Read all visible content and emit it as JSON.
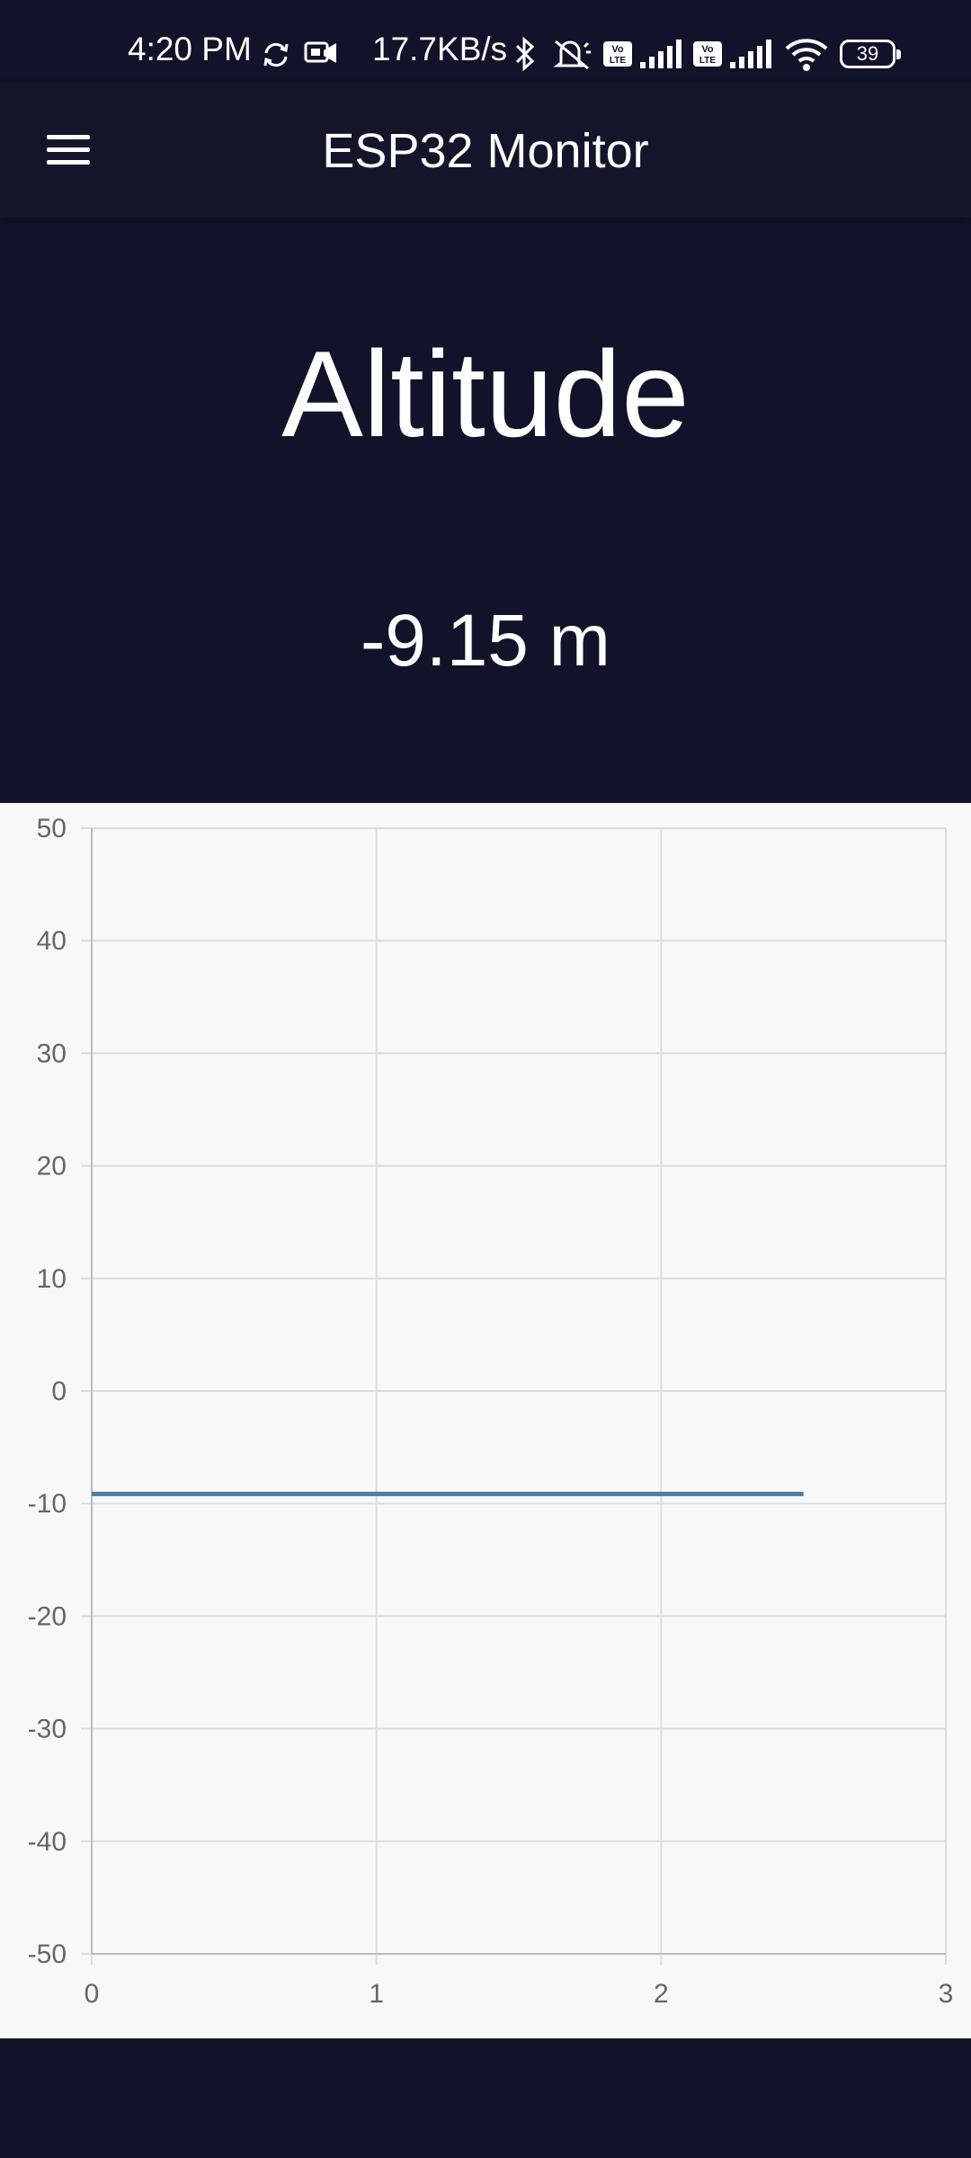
{
  "status_bar": {
    "time": "4:20 PM",
    "network_speed": "17.7KB/s",
    "battery": "39",
    "icons": [
      "sync-icon",
      "message-icon",
      "bluetooth-icon",
      "mute-icon",
      "volte-icon",
      "signal-icon",
      "volte-icon",
      "signal-icon",
      "wifi-icon",
      "battery-icon"
    ]
  },
  "app_bar": {
    "title": "ESP32 Monitor",
    "menu_icon": "hamburger-menu-icon"
  },
  "reading": {
    "label": "Altitude",
    "value": "-9.15 m"
  },
  "colors": {
    "background": "#11132a",
    "app_bar": "#13162b",
    "chart_background": "#f8f8f8",
    "series": "#4f81a6",
    "grid": "#dddddd",
    "text": "#ffffff"
  },
  "chart_data": {
    "type": "line",
    "title": "",
    "xlabel": "",
    "ylabel": "",
    "xlim": [
      0,
      3
    ],
    "ylim": [
      -50,
      50
    ],
    "x_ticks": [
      "0",
      "1",
      "2",
      "3"
    ],
    "y_ticks": [
      "50",
      "40",
      "30",
      "20",
      "10",
      "0",
      "-10",
      "-20",
      "-30",
      "-40",
      "-50"
    ],
    "grid": true,
    "legend": "none",
    "series": [
      {
        "x": [
          0,
          2.5
        ],
        "y": [
          -9.15,
          -9.15
        ]
      }
    ]
  }
}
